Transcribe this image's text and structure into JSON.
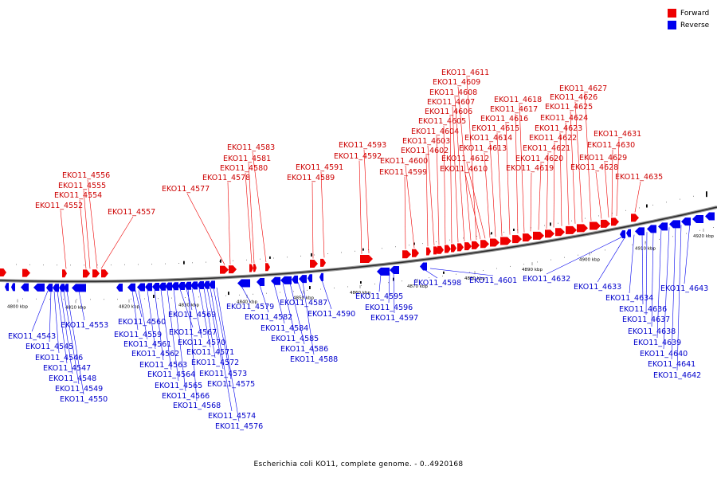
{
  "legend": {
    "forward": {
      "label": "Forward",
      "color": "#ee0000"
    },
    "reverse": {
      "label": "Reverse",
      "color": "#0000ee"
    }
  },
  "caption": "Escherichia coli KO11, complete genome. - 0..4920168",
  "axis_ticks": [
    "4800 kbp",
    "4810 kbp",
    "4820 kbp",
    "4830 kbp",
    "4840 kbp",
    "4850 kbp",
    "4860 kbp",
    "4870 kbp",
    "4880 kbp",
    "4890 kbp",
    "4900 kbp",
    "4910 kbp",
    "4920 kbp"
  ],
  "forward_genes": [
    "EKO11_4552",
    "EKO11_4554",
    "EKO11_4555",
    "EKO11_4556",
    "EKO11_4557",
    "EKO11_4577",
    "EKO11_4578",
    "EKO11_4580",
    "EKO11_4581",
    "EKO11_4583",
    "EKO11_4589",
    "EKO11_4591",
    "EKO11_4592",
    "EKO11_4593",
    "EKO11_4599",
    "EKO11_4600",
    "EKO11_4602",
    "EKO11_4603",
    "EKO11_4604",
    "EKO11_4605",
    "EKO11_4606",
    "EKO11_4607",
    "EKO11_4608",
    "EKO11_4609",
    "EKO11_4611",
    "EKO11_4610",
    "EKO11_4612",
    "EKO11_4613",
    "EKO11_4614",
    "EKO11_4615",
    "EKO11_4616",
    "EKO11_4617",
    "EKO11_4618",
    "EKO11_4619",
    "EKO11_4620",
    "EKO11_4621",
    "EKO11_4622",
    "EKO11_4623",
    "EKO11_4624",
    "EKO11_4625",
    "EKO11_4626",
    "EKO11_4627",
    "EKO11_4628",
    "EKO11_4629",
    "EKO11_4630",
    "EKO11_4631",
    "EKO11_4635"
  ],
  "reverse_genes": [
    "EKO11_4543",
    "EKO11_4545",
    "EKO11_4546",
    "EKO11_4547",
    "EKO11_4548",
    "EKO11_4549",
    "EKO11_4550",
    "EKO11_4553",
    "EKO11_4559",
    "EKO11_4560",
    "EKO11_4561",
    "EKO11_4562",
    "EKO11_4563",
    "EKO11_4564",
    "EKO11_4565",
    "EKO11_4566",
    "EKO11_4567",
    "EKO11_4568",
    "EKO11_4569",
    "EKO11_4570",
    "EKO11_4571",
    "EKO11_4572",
    "EKO11_4573",
    "EKO11_4574",
    "EKO11_4575",
    "EKO11_4576",
    "EKO11_4579",
    "EKO11_4582",
    "EKO11_4584",
    "EKO11_4585",
    "EKO11_4586",
    "EKO11_4587",
    "EKO11_4588",
    "EKO11_4590",
    "EKO11_4595",
    "EKO11_4596",
    "EKO11_4597",
    "EKO11_4598",
    "EKO11_4601",
    "EKO11_4632",
    "EKO11_4633",
    "EKO11_4634",
    "EKO11_4636",
    "EKO11_4637",
    "EKO11_4638",
    "EKO11_4639",
    "EKO11_4640",
    "EKO11_4641",
    "EKO11_4642",
    "EKO11_4643"
  ]
}
